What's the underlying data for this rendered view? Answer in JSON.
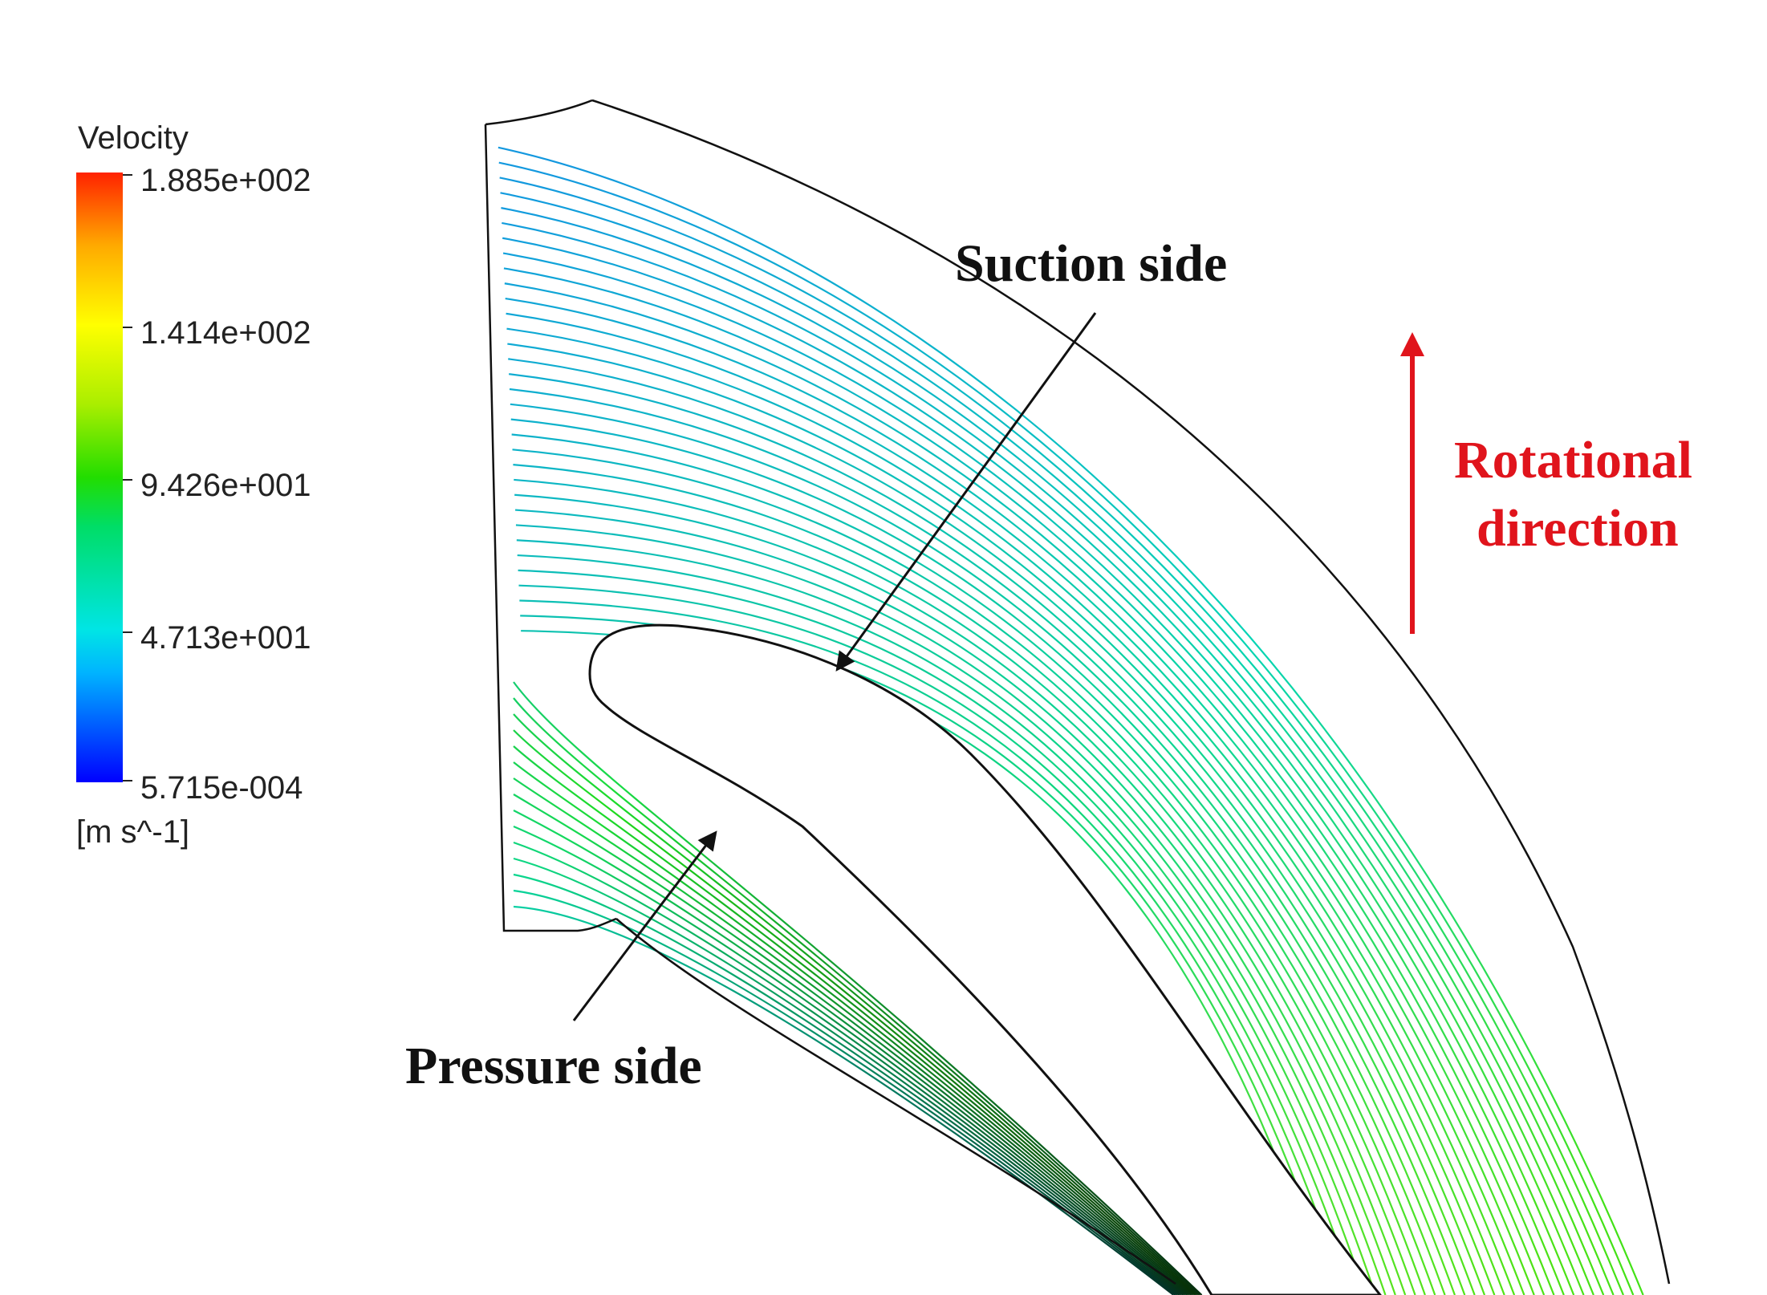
{
  "legend": {
    "title": "Velocity",
    "tick_labels": [
      "1.885e+002",
      "1.414e+002",
      "9.426e+001",
      "4.713e+001",
      "5.715e-004"
    ],
    "units": "[m s^-1]",
    "colormap": [
      "#0000ff",
      "#00b4ff",
      "#00e5e5",
      "#00dd66",
      "#22dd00",
      "#aaee00",
      "#ffff00",
      "#ffaa00",
      "#ff2200"
    ]
  },
  "annotations": {
    "suction": "Suction side",
    "pressure": "Pressure side",
    "rotation_line1": "Rotational",
    "rotation_line2": "direction"
  },
  "colors": {
    "rotation_arrow": "#e0141c",
    "outline": "#111111",
    "streamline_low": "#1e78e6",
    "streamline_mid": "#00d2d2",
    "streamline_high": "#1edc1e"
  }
}
